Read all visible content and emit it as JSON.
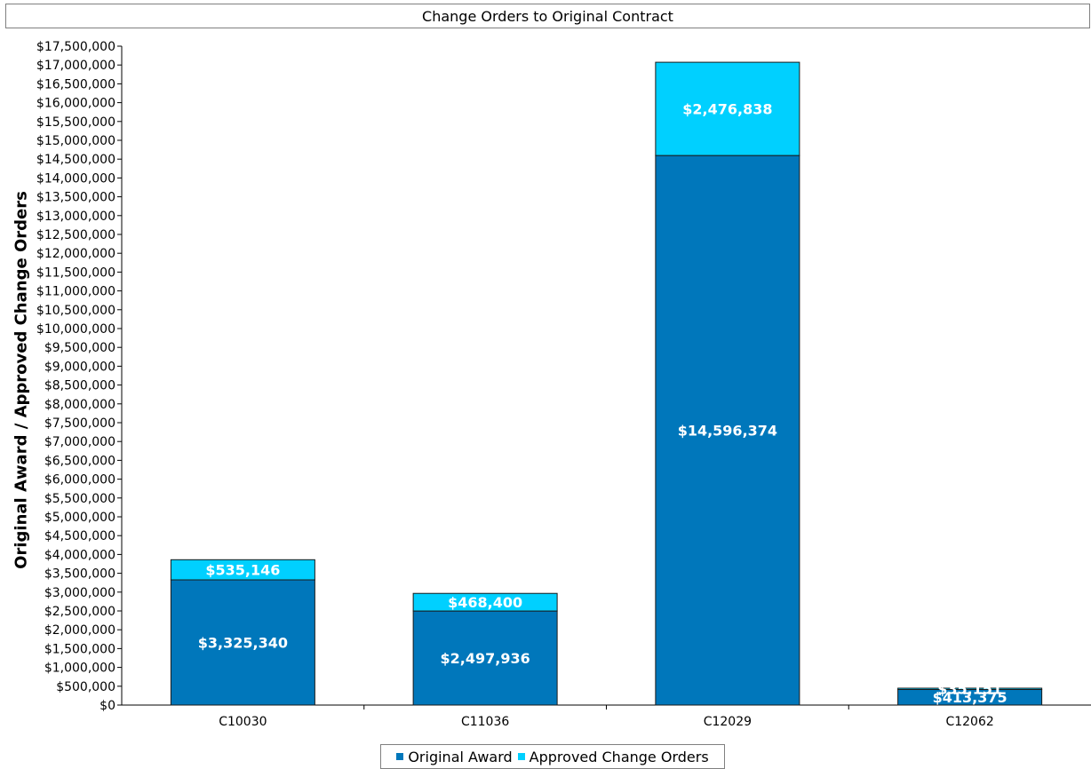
{
  "chart_data": {
    "type": "bar",
    "stacked": true,
    "title": "Change Orders to Original Contract",
    "xlabel": "",
    "ylabel": "Original Award / Approved Change Orders",
    "categories": [
      "C10030",
      "C11036",
      "C12029",
      "C12062"
    ],
    "series": [
      {
        "name": "Original Award",
        "color": "#0077BB",
        "values": [
          3325340,
          2497936,
          14596374,
          413375
        ],
        "labels": [
          "$3,325,340",
          "$2,497,936",
          "$14,596,374",
          "$413,375"
        ]
      },
      {
        "name": "Approved Change Orders",
        "color": "#00D0FF",
        "values": [
          535146,
          468400,
          2476838,
          35151
        ],
        "labels": [
          "$535,146",
          "$468,400",
          "$2,476,838",
          "$35,151"
        ]
      }
    ],
    "ylim": [
      0,
      17500000
    ],
    "ytick_step": 500000,
    "grid": false,
    "legend_position": "bottom"
  }
}
